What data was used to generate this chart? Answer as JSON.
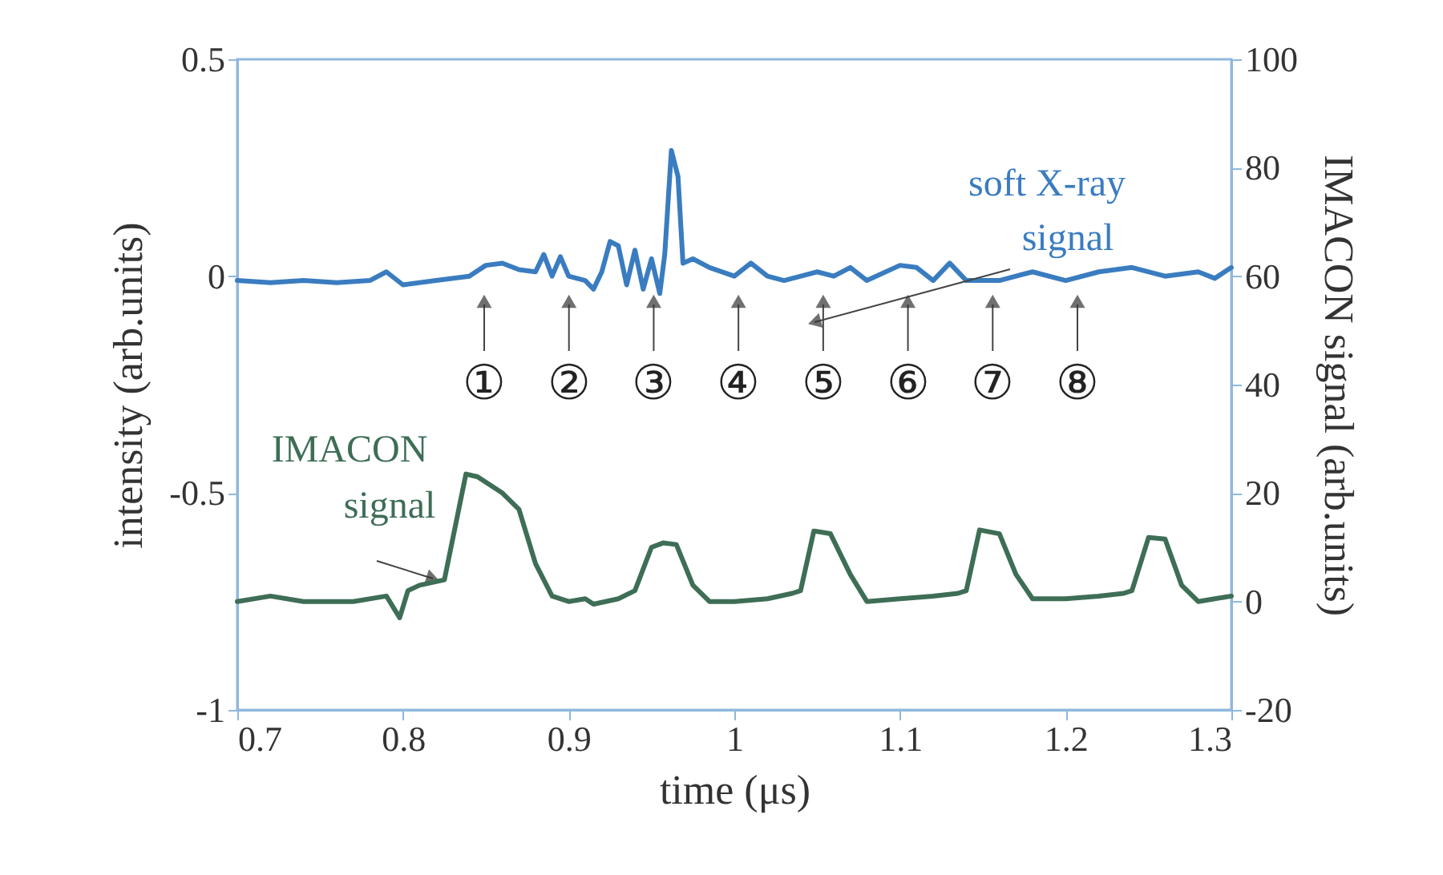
{
  "chart_data": {
    "type": "line",
    "xlabel": "time (μs)",
    "ylabel": "intensity (arb.units)",
    "y2label": "IMACON signal (arb.units)",
    "xlim": [
      0.7,
      1.3
    ],
    "xticks": [
      0.7,
      0.8,
      0.9,
      1,
      1.1,
      1.2,
      1.3
    ],
    "ylim": [
      -1,
      0.5
    ],
    "yticks": [
      -1,
      -0.5,
      0,
      0.5
    ],
    "y2lim": [
      -20,
      100
    ],
    "y2ticks": [
      -20,
      0,
      20,
      40,
      60,
      80,
      100
    ],
    "series": [
      {
        "color": "#3a7cc0",
        "x": [
          0.7,
          0.72,
          0.74,
          0.76,
          0.78,
          0.79,
          0.8,
          0.82,
          0.84,
          0.85,
          0.86,
          0.87,
          0.88,
          0.885,
          0.89,
          0.895,
          0.9,
          0.91,
          0.915,
          0.92,
          0.925,
          0.93,
          0.935,
          0.94,
          0.945,
          0.95,
          0.955,
          0.958,
          0.962,
          0.966,
          0.969,
          0.975,
          0.985,
          1.0,
          1.01,
          1.02,
          1.03,
          1.05,
          1.06,
          1.07,
          1.08,
          1.1,
          1.11,
          1.12,
          1.13,
          1.14,
          1.16,
          1.18,
          1.2,
          1.22,
          1.24,
          1.26,
          1.28,
          1.29,
          1.3
        ],
        "values": [
          -0.01,
          -0.015,
          -0.01,
          -0.015,
          -0.01,
          0.01,
          -0.02,
          -0.01,
          0.0,
          0.025,
          0.03,
          0.015,
          0.01,
          0.05,
          0.0,
          0.045,
          0.0,
          -0.01,
          -0.03,
          0.01,
          0.08,
          0.07,
          -0.02,
          0.06,
          -0.03,
          0.04,
          -0.04,
          0.05,
          0.29,
          0.23,
          0.03,
          0.04,
          0.02,
          0.0,
          0.03,
          0.0,
          -0.01,
          0.01,
          0.0,
          0.02,
          -0.01,
          0.025,
          0.02,
          -0.01,
          0.03,
          -0.01,
          -0.01,
          0.01,
          -0.01,
          0.01,
          0.02,
          0.0,
          0.01,
          -0.005,
          0.02
        ]
      },
      {
        "color": "#3e6e55",
        "axis": "y2",
        "x": [
          0.7,
          0.72,
          0.74,
          0.77,
          0.79,
          0.798,
          0.803,
          0.81,
          0.825,
          0.838,
          0.845,
          0.86,
          0.87,
          0.88,
          0.89,
          0.9,
          0.91,
          0.915,
          0.93,
          0.94,
          0.95,
          0.957,
          0.965,
          0.975,
          0.985,
          1.0,
          1.02,
          1.035,
          1.04,
          1.048,
          1.058,
          1.07,
          1.08,
          1.1,
          1.12,
          1.135,
          1.14,
          1.148,
          1.16,
          1.17,
          1.18,
          1.2,
          1.22,
          1.235,
          1.24,
          1.25,
          1.26,
          1.27,
          1.28,
          1.29,
          1.3
        ],
        "values": [
          0,
          1,
          0,
          0,
          1,
          -3,
          2,
          3,
          4,
          23.5,
          23,
          20,
          17,
          7,
          1,
          0,
          0.5,
          -0.5,
          0.5,
          2,
          10,
          10.8,
          10.5,
          3,
          0,
          0,
          0.5,
          1.5,
          2,
          13,
          12.5,
          5,
          0,
          0.5,
          1,
          1.5,
          2,
          13.2,
          12.5,
          5,
          0.5,
          0.5,
          1,
          1.5,
          2,
          11.8,
          11.5,
          3,
          0,
          0.5,
          1
        ]
      }
    ],
    "annotations": [
      "soft X-ray signal",
      "IMACON signal",
      "①",
      "②",
      "③",
      "④",
      "⑤",
      "⑥",
      "⑦",
      "⑧"
    ]
  }
}
